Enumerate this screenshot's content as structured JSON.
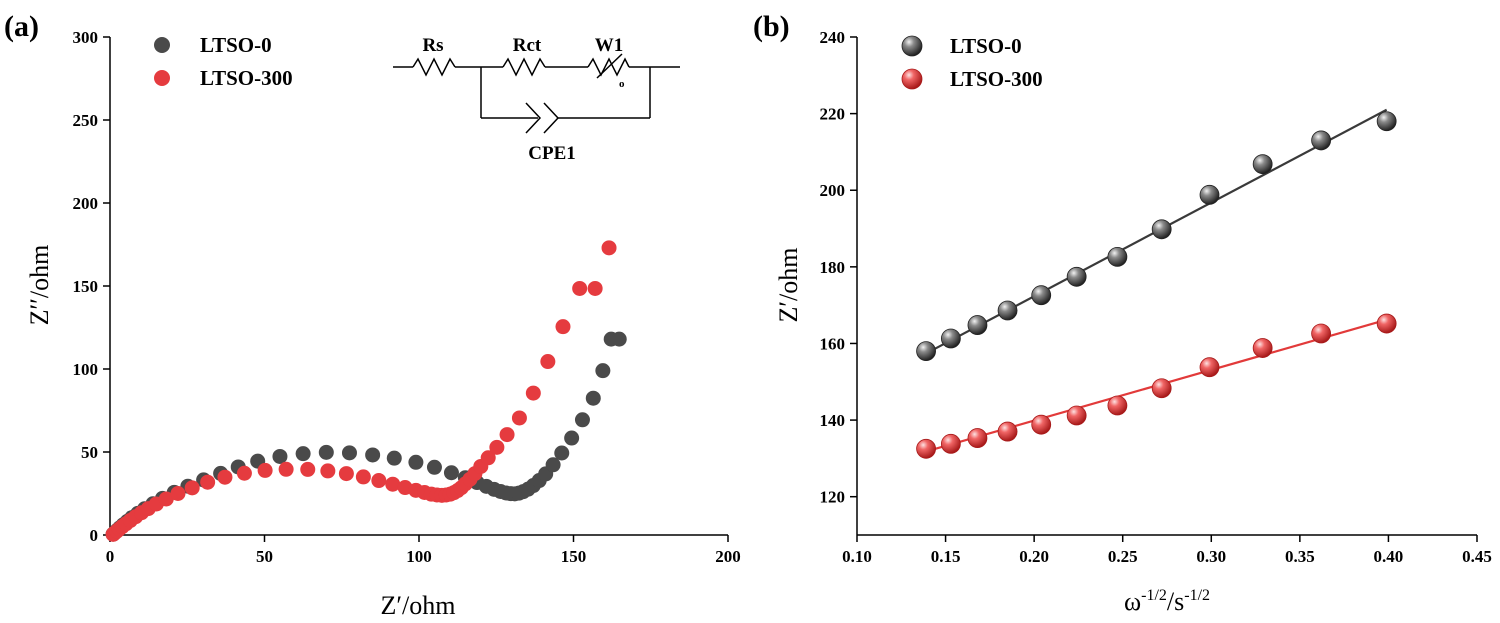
{
  "colors": {
    "ltso0": "#4a4a4a",
    "ltso300": "#e53b3f",
    "fit0": "#3a3a3a",
    "fit300": "#e23a3a",
    "axis": "#000000"
  },
  "chart_data": [
    {
      "panel": "(a)",
      "type": "scatter",
      "xlabel": "Z′/ohm",
      "ylabel": "Z′′/ohm",
      "xlim": [
        0,
        200
      ],
      "ylim": [
        0,
        300
      ],
      "xticks": [
        "0",
        "50",
        "100",
        "150",
        "200"
      ],
      "yticks": [
        "0",
        "50",
        "100",
        "150",
        "200",
        "250",
        "300"
      ],
      "legend": [
        "LTSO-0",
        "LTSO-300"
      ],
      "circuit": {
        "labels": [
          "Rs",
          "Rct",
          "W1",
          "CPE1"
        ],
        "warburg_sub": "o"
      },
      "series": [
        {
          "name": "LTSO-0",
          "x": [
            1.0,
            1.6,
            2.3,
            3.2,
            4.3,
            5.6,
            7.1,
            9.0,
            11.2,
            13.9,
            17.0,
            20.8,
            25.2,
            30.3,
            35.8,
            41.5,
            47.8,
            55.0,
            62.5,
            70.0,
            77.5,
            85.0,
            92.0,
            99.0,
            105.0,
            110.5,
            115.0,
            118.8,
            121.8,
            124.3,
            126.4,
            128.2,
            129.7,
            131.0,
            132.3,
            133.7,
            135.3,
            137.0,
            138.9,
            141.0,
            143.4,
            146.2,
            149.4,
            152.9,
            156.4,
            159.5,
            162.2,
            164.8
          ],
          "y": [
            0.5,
            1.5,
            2.8,
            4.4,
            6.2,
            8.2,
            10.5,
            13.0,
            15.8,
            18.8,
            22.1,
            25.7,
            29.4,
            33.2,
            37.1,
            41.0,
            44.5,
            47.3,
            49.0,
            49.8,
            49.5,
            48.2,
            46.3,
            43.8,
            40.8,
            37.5,
            34.5,
            31.6,
            29.3,
            27.5,
            26.2,
            25.3,
            24.9,
            24.8,
            25.2,
            26.1,
            27.6,
            29.8,
            32.8,
            36.8,
            42.3,
            49.4,
            58.4,
            69.4,
            82.4,
            99.0,
            118.0,
            118.0
          ]
        },
        {
          "name": "LTSO-300",
          "x": [
            1.0,
            1.5,
            2.2,
            3.0,
            4.0,
            5.2,
            6.6,
            8.3,
            10.2,
            12.4,
            15.0,
            18.2,
            22.0,
            26.6,
            31.6,
            37.2,
            43.5,
            50.2,
            57.0,
            64.0,
            70.5,
            76.5,
            82.0,
            87.0,
            91.5,
            95.5,
            99.0,
            101.8,
            104.0,
            105.8,
            107.4,
            108.8,
            110.1,
            111.3,
            112.5,
            113.7,
            115.0,
            116.5,
            118.1,
            120.0,
            122.4,
            125.2,
            128.5,
            132.5,
            137.0,
            141.7,
            146.6,
            152.0,
            157.0,
            161.5
          ],
          "y": [
            0.4,
            1.2,
            2.3,
            3.6,
            5.1,
            6.8,
            8.8,
            11.0,
            13.4,
            15.9,
            18.7,
            21.7,
            25.0,
            28.4,
            31.8,
            34.8,
            37.2,
            38.9,
            39.6,
            39.5,
            38.6,
            37.0,
            35.0,
            32.8,
            30.6,
            28.6,
            26.9,
            25.6,
            24.6,
            24.1,
            23.9,
            24.1,
            24.6,
            25.5,
            26.8,
            28.5,
            30.8,
            33.6,
            37.0,
            41.3,
            46.5,
            52.8,
            60.5,
            70.5,
            85.5,
            104.5,
            125.5,
            148.5,
            148.5,
            173.0
          ]
        }
      ]
    },
    {
      "panel": "(b)",
      "type": "scatter",
      "xlabel_base": "ω",
      "xlabel_exp1": "-1/2",
      "xlabel_mid": "/s",
      "xlabel_exp2": "-1/2",
      "ylabel": "Z′/ohm",
      "xlim": [
        0.1,
        0.45
      ],
      "ylim": [
        110,
        240
      ],
      "xticks": [
        "0.10",
        "0.15",
        "0.20",
        "0.25",
        "0.30",
        "0.35",
        "0.40",
        "0.45"
      ],
      "yticks": [
        "120",
        "140",
        "160",
        "180",
        "200",
        "220",
        "240"
      ],
      "legend": [
        "LTSO-0",
        "LTSO-300"
      ],
      "series": [
        {
          "name": "LTSO-0",
          "x": [
            0.139,
            0.153,
            0.168,
            0.185,
            0.204,
            0.224,
            0.247,
            0.272,
            0.299,
            0.329,
            0.362,
            0.399
          ],
          "y": [
            158.0,
            161.3,
            164.8,
            168.6,
            172.6,
            177.4,
            182.6,
            189.8,
            198.8,
            206.8,
            213.0,
            218.0
          ],
          "fit": {
            "x": [
              0.139,
              0.399
            ],
            "y": [
              157.4,
              221.0
            ]
          }
        },
        {
          "name": "LTSO-300",
          "x": [
            0.139,
            0.153,
            0.168,
            0.185,
            0.204,
            0.224,
            0.247,
            0.272,
            0.299,
            0.329,
            0.362,
            0.399
          ],
          "y": [
            132.5,
            133.8,
            135.3,
            137.0,
            138.8,
            141.2,
            143.8,
            148.3,
            153.8,
            158.8,
            162.6,
            165.2
          ],
          "fit": {
            "x": [
              0.139,
              0.399
            ],
            "y": [
              131.8,
              166.2
            ]
          }
        }
      ]
    }
  ]
}
